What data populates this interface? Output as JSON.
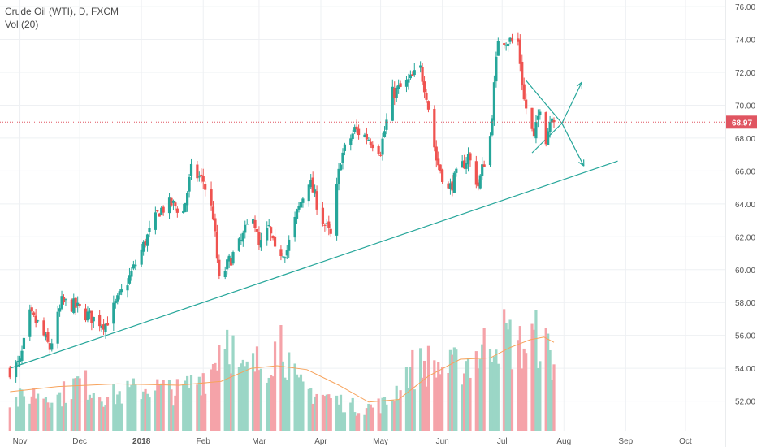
{
  "legend": {
    "title": "Crude Oil (WTI), D, FXCM",
    "volume": "Vol (20)"
  },
  "price_label": "68.97",
  "colors": {
    "up": "#26a69a",
    "down": "#ef5350",
    "vol_up": "#9bd6c6",
    "vol_down": "#f5a3a9",
    "vol_ma": "#f7a35c",
    "trend": "#26a69a",
    "price_line": "#e05561",
    "grid": "#eef0f3",
    "axis_text": "#555555"
  },
  "chart_data": {
    "type": "candlestick",
    "title": "Crude Oil (WTI), D, FXCM",
    "x_axis_labels": [
      "Nov",
      "Dec",
      "2018",
      "Feb",
      "Mar",
      "Apr",
      "May",
      "Jun",
      "Jul",
      "Aug",
      "Sep",
      "Oct"
    ],
    "y_axis_labels": [
      "52.00",
      "54.00",
      "56.00",
      "58.00",
      "60.00",
      "62.00",
      "64.00",
      "66.00",
      "68.00",
      "70.00",
      "72.00",
      "74.00",
      "76.00"
    ],
    "ylim": [
      50.2,
      76.4
    ],
    "last_price": 68.97,
    "grid": true,
    "price_path": [
      [
        "2017-10-27",
        53.9
      ],
      [
        "2017-11-01",
        54.3
      ],
      [
        "2017-11-06",
        57.2
      ],
      [
        "2017-11-10",
        56.7
      ],
      [
        "2017-11-16",
        55.2
      ],
      [
        "2017-11-22",
        58.0
      ],
      [
        "2017-11-28",
        57.8
      ],
      [
        "2017-12-04",
        57.3
      ],
      [
        "2017-12-08",
        57.0
      ],
      [
        "2017-12-14",
        56.7
      ],
      [
        "2017-12-20",
        58.1
      ],
      [
        "2017-12-27",
        59.8
      ],
      [
        "2018-01-04",
        62.0
      ],
      [
        "2018-01-10",
        63.6
      ],
      [
        "2018-01-16",
        64.0
      ],
      [
        "2018-01-22",
        63.5
      ],
      [
        "2018-01-26",
        66.0
      ],
      [
        "2018-02-01",
        65.4
      ],
      [
        "2018-02-06",
        63.3
      ],
      [
        "2018-02-09",
        59.3
      ],
      [
        "2018-02-14",
        60.5
      ],
      [
        "2018-02-20",
        61.7
      ],
      [
        "2018-02-26",
        63.5
      ],
      [
        "2018-03-01",
        61.3
      ],
      [
        "2018-03-06",
        62.5
      ],
      [
        "2018-03-09",
        61.0
      ],
      [
        "2018-03-15",
        61.2
      ],
      [
        "2018-03-20",
        63.4
      ],
      [
        "2018-03-26",
        65.5
      ],
      [
        "2018-04-02",
        63.0
      ],
      [
        "2018-04-06",
        62.0
      ],
      [
        "2018-04-11",
        66.8
      ],
      [
        "2018-04-18",
        68.5
      ],
      [
        "2018-04-25",
        68.0
      ],
      [
        "2018-05-01",
        67.3
      ],
      [
        "2018-05-07",
        70.7
      ],
      [
        "2018-05-14",
        71.3
      ],
      [
        "2018-05-21",
        72.2
      ],
      [
        "2018-05-24",
        70.7
      ],
      [
        "2018-05-29",
        66.7
      ],
      [
        "2018-06-04",
        64.8
      ],
      [
        "2018-06-08",
        65.7
      ],
      [
        "2018-06-14",
        66.9
      ],
      [
        "2018-06-19",
        65.1
      ],
      [
        "2018-06-25",
        68.1
      ],
      [
        "2018-06-29",
        74.1
      ],
      [
        "2018-07-03",
        74.0
      ],
      [
        "2018-07-09",
        73.8
      ],
      [
        "2018-07-12",
        70.3
      ],
      [
        "2018-07-17",
        67.9
      ],
      [
        "2018-07-20",
        70.0
      ],
      [
        "2018-07-23",
        68.0
      ],
      [
        "2018-07-26",
        69.6
      ],
      [
        "2018-07-27",
        68.97
      ]
    ],
    "volume_series": {
      "name": "Vol (20)",
      "path": [
        [
          "2017-10-27",
          0.25
        ],
        [
          "2017-11-10",
          0.35
        ],
        [
          "2017-11-20",
          0.3
        ],
        [
          "2017-12-01",
          0.45
        ],
        [
          "2017-12-15",
          0.3
        ],
        [
          "2018-01-05",
          0.4
        ],
        [
          "2018-01-20",
          0.35
        ],
        [
          "2018-02-05",
          0.55
        ],
        [
          "2018-02-12",
          0.95
        ],
        [
          "2018-02-20",
          0.5
        ],
        [
          "2018-03-05",
          0.65
        ],
        [
          "2018-03-12",
          0.85
        ],
        [
          "2018-03-20",
          0.4
        ],
        [
          "2018-04-05",
          0.3
        ],
        [
          "2018-04-20",
          0.2
        ],
        [
          "2018-05-05",
          0.25
        ],
        [
          "2018-05-15",
          0.55
        ],
        [
          "2018-05-25",
          0.6
        ],
        [
          "2018-06-05",
          0.55
        ],
        [
          "2018-06-20",
          0.7
        ],
        [
          "2018-06-28",
          0.9
        ],
        [
          "2018-07-10",
          0.75
        ],
        [
          "2018-07-20",
          0.85
        ],
        [
          "2018-07-27",
          0.6
        ]
      ],
      "ma_path": [
        [
          "2017-10-27",
          0.3
        ],
        [
          "2017-11-20",
          0.34
        ],
        [
          "2017-12-20",
          0.36
        ],
        [
          "2018-01-20",
          0.35
        ],
        [
          "2018-02-10",
          0.38
        ],
        [
          "2018-02-25",
          0.48
        ],
        [
          "2018-03-10",
          0.5
        ],
        [
          "2018-03-25",
          0.47
        ],
        [
          "2018-04-10",
          0.35
        ],
        [
          "2018-04-25",
          0.22
        ],
        [
          "2018-05-10",
          0.24
        ],
        [
          "2018-05-25",
          0.42
        ],
        [
          "2018-06-10",
          0.55
        ],
        [
          "2018-06-25",
          0.56
        ],
        [
          "2018-07-05",
          0.64
        ],
        [
          "2018-07-15",
          0.7
        ],
        [
          "2018-07-22",
          0.72
        ],
        [
          "2018-07-27",
          0.68
        ]
      ]
    },
    "annotations": {
      "trendline": [
        [
          "2017-10-27",
          54.0
        ],
        [
          "2018-08-28",
          66.6
        ]
      ],
      "triangle_upper": [
        [
          "2018-07-13",
          71.5
        ],
        [
          "2018-07-31",
          68.9
        ]
      ],
      "triangle_lower": [
        [
          "2018-07-16",
          67.1
        ],
        [
          "2018-07-31",
          68.9
        ]
      ],
      "arrow_up": [
        [
          "2018-07-31",
          68.9
        ],
        [
          "2018-08-10",
          71.4
        ]
      ],
      "arrow_down": [
        [
          "2018-07-31",
          68.9
        ],
        [
          "2018-08-11",
          66.3
        ]
      ]
    }
  }
}
